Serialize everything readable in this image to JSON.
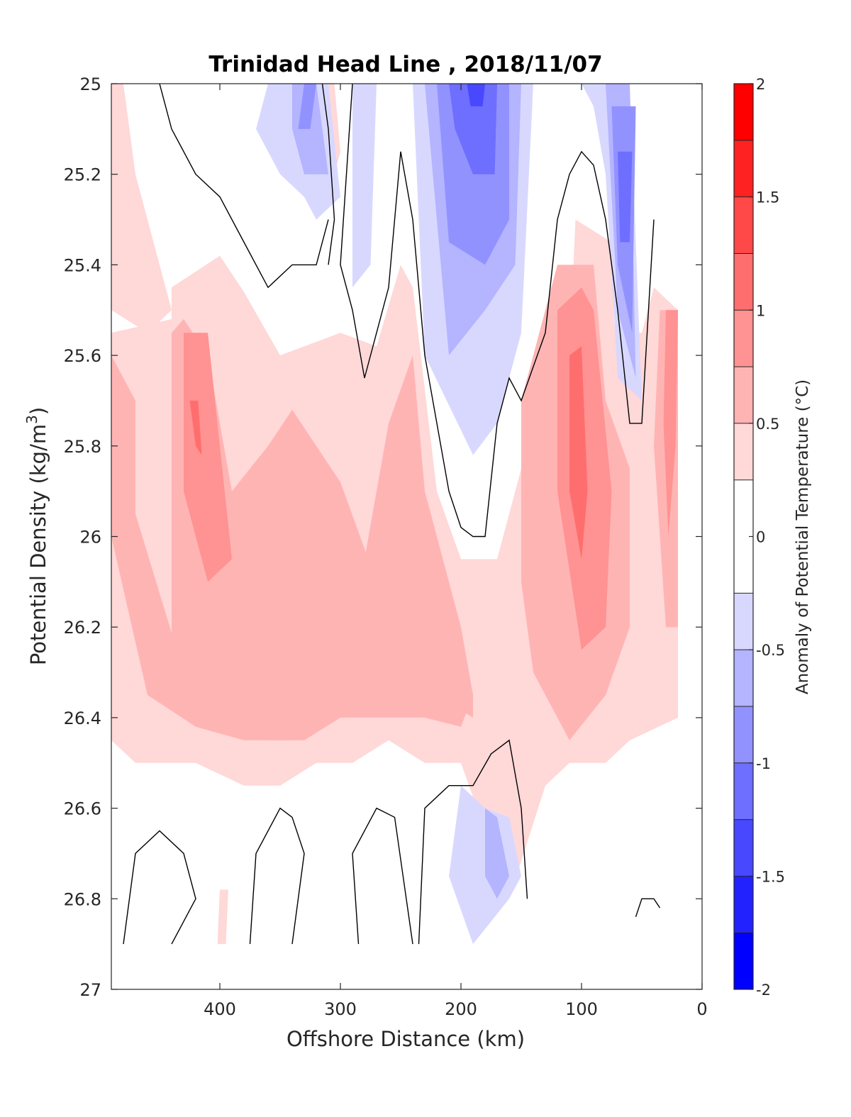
{
  "chart_data": {
    "type": "contourf",
    "title": "Trinidad Head Line , 2018/11/07",
    "xlabel": "Offshore Distance (km)",
    "ylabel": "Potential Density (kg/m^3)",
    "ylabel_main": "Potential Density (kg/m",
    "ylabel_sup": "3",
    "ylabel_end": ")",
    "xlim": [
      490,
      0
    ],
    "ylim": [
      27,
      25
    ],
    "x_reversed": true,
    "y_reversed": true,
    "xticks": [
      400,
      300,
      200,
      100,
      0
    ],
    "xtick_labels": [
      "400",
      "300",
      "200",
      "100",
      "0"
    ],
    "yticks": [
      25,
      25.2,
      25.4,
      25.6,
      25.8,
      26,
      26.2,
      26.4,
      26.6,
      26.8,
      27
    ],
    "ytick_labels": [
      "25",
      "25.2",
      "25.4",
      "25.6",
      "25.8",
      "26",
      "26.2",
      "26.4",
      "26.6",
      "26.8",
      "27"
    ],
    "colorbar": {
      "label": "Anomaly of Potential Temperature (°C)",
      "clim": [
        -2,
        2
      ],
      "levels": [
        -2,
        -1.75,
        -1.5,
        -1.25,
        -1,
        -0.75,
        -0.5,
        -0.25,
        0.25,
        0.5,
        0.75,
        1,
        1.25,
        1.5,
        1.75,
        2
      ],
      "ticks": [
        2,
        1.5,
        1,
        0.5,
        0,
        -0.5,
        -1,
        -1.5,
        -2
      ],
      "tick_labels": [
        "2",
        "1.5",
        "1",
        "0.5",
        "0",
        "-0.5",
        "-1",
        "-1.5",
        "-2"
      ],
      "colors": [
        "#0000ff",
        "#2222ff",
        "#4848ff",
        "#6e6eff",
        "#9292ff",
        "#b4b4ff",
        "#d8d8ff",
        "#ffffff",
        "#ffd8d8",
        "#ffb4b4",
        "#ff9292",
        "#ff6e6e",
        "#ff4848",
        "#ff2222",
        "#ff0000"
      ]
    },
    "grid": false,
    "zero_contour_color": "#000000",
    "regions": [
      {
        "value": 0.375,
        "x": [
          490,
          440,
          440,
          400,
          380,
          350,
          300,
          270,
          250,
          240,
          220,
          200,
          170,
          150,
          130,
          110,
          90,
          70,
          50,
          40,
          20,
          20,
          60,
          80,
          110,
          130,
          160,
          200,
          230,
          260,
          290,
          320,
          350,
          380,
          420,
          470,
          490
        ],
        "y": [
          25.55,
          25.52,
          25.45,
          25.38,
          25.46,
          25.6,
          25.55,
          25.58,
          25.4,
          25.45,
          25.9,
          26.05,
          26.05,
          25.85,
          25.7,
          25.45,
          25.42,
          25.55,
          25.55,
          25.45,
          25.5,
          26.4,
          26.45,
          26.5,
          26.5,
          26.55,
          26.8,
          26.5,
          26.5,
          26.45,
          26.5,
          26.5,
          26.55,
          26.55,
          26.5,
          26.5,
          26.45
        ]
      },
      {
        "value": 0.375,
        "x": [
          490,
          480,
          470,
          440,
          460,
          490
        ],
        "y": [
          25.0,
          25.0,
          25.2,
          25.5,
          25.55,
          25.5
        ]
      },
      {
        "value": 0.375,
        "x": [
          320,
          305,
          300,
          310,
          320
        ],
        "y": [
          25.0,
          25.0,
          25.15,
          25.25,
          25.1
        ]
      },
      {
        "value": 0.375,
        "x": [
          105,
          75,
          70,
          100,
          110
        ],
        "y": [
          25.3,
          25.35,
          25.8,
          25.8,
          25.6
        ]
      },
      {
        "value": 0.375,
        "x": [
          400,
          393,
          395,
          402
        ],
        "y": [
          26.78,
          26.78,
          26.9,
          26.9
        ]
      },
      {
        "value": 0.625,
        "x": [
          490,
          470,
          470,
          430,
          400,
          380,
          340,
          300,
          280,
          260,
          240,
          230,
          200,
          190,
          190,
          220,
          260,
          300,
          340,
          380,
          420,
          460,
          490
        ],
        "y": [
          25.6,
          25.7,
          25.95,
          26.3,
          26.32,
          26.4,
          26.45,
          26.3,
          26.05,
          25.75,
          25.6,
          25.9,
          26.2,
          26.35,
          26.4,
          26.35,
          26.35,
          26.4,
          26.45,
          26.45,
          26.42,
          26.35,
          26.0
        ]
      },
      {
        "value": 0.625,
        "x": [
          440,
          430,
          410,
          390,
          360,
          340,
          300,
          270,
          250,
          230,
          200,
          190,
          200,
          230,
          260,
          300,
          330,
          360,
          400,
          440
        ],
        "y": [
          25.55,
          25.52,
          25.6,
          25.9,
          25.8,
          25.72,
          25.88,
          26.1,
          26.0,
          26.3,
          26.3,
          26.35,
          26.42,
          26.4,
          26.4,
          26.4,
          26.45,
          26.45,
          26.4,
          26.35
        ]
      },
      {
        "value": 0.625,
        "x": [
          150,
          120,
          90,
          80,
          60,
          60,
          80,
          110,
          140,
          150
        ],
        "y": [
          25.7,
          25.4,
          25.4,
          25.7,
          25.85,
          26.2,
          26.35,
          26.45,
          26.3,
          26.1
        ]
      },
      {
        "value": 0.625,
        "x": [
          35,
          20,
          20,
          30,
          40
        ],
        "y": [
          25.5,
          25.5,
          26.2,
          26.2,
          25.8
        ]
      },
      {
        "value": 0.875,
        "x": [
          430,
          410,
          400,
          390,
          410,
          430
        ],
        "y": [
          25.55,
          25.55,
          25.8,
          26.05,
          26.1,
          25.9
        ]
      },
      {
        "value": 0.875,
        "x": [
          120,
          100,
          90,
          75,
          80,
          100,
          120
        ],
        "y": [
          25.5,
          25.45,
          25.5,
          25.9,
          26.2,
          26.25,
          25.9
        ]
      },
      {
        "value": 0.875,
        "x": [
          30,
          20,
          22,
          28,
          32
        ],
        "y": [
          25.5,
          25.5,
          25.8,
          26.0,
          25.75
        ]
      },
      {
        "value": 1.125,
        "x": [
          425,
          418,
          415,
          420
        ],
        "y": [
          25.7,
          25.7,
          25.82,
          25.8
        ]
      },
      {
        "value": 1.125,
        "x": [
          110,
          100,
          95,
          100,
          110
        ],
        "y": [
          25.6,
          25.58,
          25.9,
          26.05,
          25.9
        ]
      },
      {
        "value": -0.375,
        "x": [
          360,
          310,
          300,
          320,
          330,
          350,
          370
        ],
        "y": [
          25.0,
          25.0,
          25.25,
          25.3,
          25.25,
          25.2,
          25.1
        ]
      },
      {
        "value": -0.375,
        "x": [
          290,
          270,
          275,
          290
        ],
        "y": [
          25.0,
          25.0,
          25.4,
          25.45
        ]
      },
      {
        "value": -0.375,
        "x": [
          240,
          140,
          150,
          170,
          190,
          230
        ],
        "y": [
          25.0,
          25.0,
          25.55,
          25.75,
          25.82,
          25.6
        ]
      },
      {
        "value": -0.375,
        "x": [
          100,
          60,
          50,
          70,
          80,
          90
        ],
        "y": [
          25.0,
          25.0,
          25.7,
          25.65,
          25.2,
          25.05
        ]
      },
      {
        "value": -0.375,
        "x": [
          200,
          180,
          160,
          150,
          160,
          190,
          210
        ],
        "y": [
          26.55,
          26.6,
          26.62,
          26.75,
          26.8,
          26.9,
          26.75
        ]
      },
      {
        "value": -0.625,
        "x": [
          340,
          320,
          310,
          330,
          340
        ],
        "y": [
          25.0,
          25.0,
          25.2,
          25.2,
          25.1
        ]
      },
      {
        "value": -0.625,
        "x": [
          230,
          150,
          155,
          180,
          210
        ],
        "y": [
          25.0,
          25.0,
          25.4,
          25.5,
          25.6
        ]
      },
      {
        "value": -0.625,
        "x": [
          80,
          60,
          55,
          70
        ],
        "y": [
          25.0,
          25.0,
          25.65,
          25.5
        ]
      },
      {
        "value": -0.625,
        "x": [
          180,
          170,
          160,
          170,
          180
        ],
        "y": [
          26.6,
          26.62,
          26.75,
          26.8,
          26.75
        ]
      },
      {
        "value": -0.875,
        "x": [
          330,
          320,
          325,
          335
        ],
        "y": [
          25.0,
          25.0,
          25.1,
          25.1
        ]
      },
      {
        "value": -0.875,
        "x": [
          220,
          160,
          160,
          180,
          210
        ],
        "y": [
          25.0,
          25.0,
          25.3,
          25.4,
          25.35
        ]
      },
      {
        "value": -0.875,
        "x": [
          75,
          55,
          58,
          70
        ],
        "y": [
          25.05,
          25.05,
          25.55,
          25.4
        ]
      },
      {
        "value": -1.125,
        "x": [
          210,
          170,
          172,
          190,
          205
        ],
        "y": [
          25.0,
          25.0,
          25.2,
          25.2,
          25.1
        ]
      },
      {
        "value": -1.125,
        "x": [
          70,
          58,
          60,
          68
        ],
        "y": [
          25.15,
          25.15,
          25.35,
          25.35
        ]
      },
      {
        "value": -1.375,
        "x": [
          195,
          180,
          182,
          192
        ],
        "y": [
          25.0,
          25.0,
          25.05,
          25.05
        ]
      }
    ],
    "zero_contours": [
      {
        "x": [
          450,
          440,
          420,
          400,
          380,
          360,
          340,
          320,
          310
        ],
        "y": [
          25.0,
          25.1,
          25.2,
          25.25,
          25.35,
          25.45,
          25.4,
          25.4,
          25.3
        ]
      },
      {
        "x": [
          315,
          310,
          305,
          310
        ],
        "y": [
          25.0,
          25.1,
          25.3,
          25.4
        ]
      },
      {
        "x": [
          290,
          295,
          300,
          290,
          280,
          260,
          250,
          240,
          230,
          210,
          200,
          190,
          180,
          170
        ],
        "y": [
          25.0,
          25.2,
          25.4,
          25.5,
          25.65,
          25.45,
          25.15,
          25.3,
          25.6,
          25.9,
          25.98,
          26.0,
          26.0,
          25.75
        ]
      },
      {
        "x": [
          170,
          160,
          150,
          130,
          120,
          110,
          100,
          90,
          80,
          70,
          60,
          50,
          40
        ],
        "y": [
          25.75,
          25.65,
          25.7,
          25.55,
          25.3,
          25.2,
          25.15,
          25.18,
          25.3,
          25.5,
          25.75,
          25.75,
          25.3
        ]
      },
      {
        "x": [
          480,
          470,
          450,
          430,
          420,
          430,
          440
        ],
        "y": [
          26.9,
          26.7,
          26.65,
          26.7,
          26.8,
          26.85,
          26.9
        ]
      },
      {
        "x": [
          375,
          370,
          350,
          340,
          330,
          340
        ],
        "y": [
          26.9,
          26.7,
          26.6,
          26.62,
          26.7,
          26.9
        ]
      },
      {
        "x": [
          285,
          290,
          270,
          255,
          240
        ],
        "y": [
          26.9,
          26.7,
          26.6,
          26.62,
          26.9
        ]
      },
      {
        "x": [
          235,
          230,
          210,
          190,
          175,
          160,
          150,
          145
        ],
        "y": [
          26.9,
          26.6,
          26.55,
          26.55,
          26.48,
          26.45,
          26.6,
          26.8
        ]
      },
      {
        "x": [
          55,
          50,
          40,
          35
        ],
        "y": [
          26.84,
          26.8,
          26.8,
          26.82
        ]
      }
    ]
  }
}
